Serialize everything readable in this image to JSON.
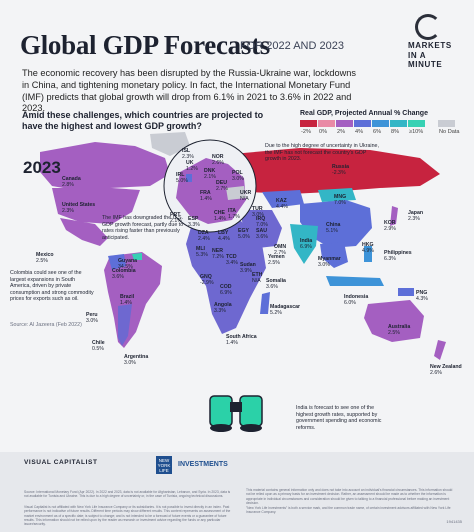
{
  "header": {
    "title": "Global GDP Forecasts",
    "subtitle": "FOR 2022 AND 2023",
    "intro": "The economic recovery has been disrupted by the Russia-Ukraine war, lockdowns in China, and tightening monetary policy. In fact, the International Monetary Fund (IMF) predicts that global growth will drop from 6.1% in 2021 to 3.6% in 2022 and 2023.",
    "question": "Amid these challenges, which countries are projected to have the highest and lowest GDP growth?",
    "logo_line1": "MARKETS",
    "logo_line2": "IN A MINUTE"
  },
  "legend": {
    "title": "Real GDP, Projected Annual % Change",
    "items": [
      {
        "label": "-2%",
        "color": "#c7233f"
      },
      {
        "label": "0%",
        "color": "#e98aa6"
      },
      {
        "label": "2%",
        "color": "#a45fc1"
      },
      {
        "label": "4%",
        "color": "#5d6fd8"
      },
      {
        "label": "6%",
        "color": "#3d93d8"
      },
      {
        "label": "8%",
        "color": "#33b6c6"
      },
      {
        "label": "≥10%",
        "color": "#37d1b4"
      },
      {
        "label": "No Data",
        "color": "#c9ccd3"
      }
    ]
  },
  "year": "2023",
  "countries": [
    {
      "name": "Canada",
      "value": "2.8%"
    },
    {
      "name": "United States",
      "value": "2.3%"
    },
    {
      "name": "Mexico",
      "value": "2.5%"
    },
    {
      "name": "Guyana",
      "value": "34.5%"
    },
    {
      "name": "Brazil",
      "value": "1.4%"
    },
    {
      "name": "Peru",
      "value": "3.0%"
    },
    {
      "name": "Chile",
      "value": "0.5%"
    },
    {
      "name": "Argentina",
      "value": "3.0%"
    },
    {
      "name": "Colombia",
      "value": "3.6%"
    },
    {
      "name": "ISL",
      "value": "2.3%"
    },
    {
      "name": "UK",
      "value": "1.2%"
    },
    {
      "name": "IRL",
      "value": "5.0%"
    },
    {
      "name": "NOR",
      "value": "2.6%"
    },
    {
      "name": "DNK",
      "value": "2.1%"
    },
    {
      "name": "DEU",
      "value": "2.7%"
    },
    {
      "name": "POL",
      "value": "3.0%"
    },
    {
      "name": "FRA",
      "value": "1.4%"
    },
    {
      "name": "UKR",
      "value": "N/A"
    },
    {
      "name": "PRT",
      "value": "2.1%"
    },
    {
      "name": "ESP",
      "value": "3.3%"
    },
    {
      "name": "CHE",
      "value": "1.4%"
    },
    {
      "name": "ITA",
      "value": "1.7%"
    },
    {
      "name": "TUR",
      "value": "3.0%"
    },
    {
      "name": "Russia",
      "value": "-2.3%"
    },
    {
      "name": "KAZ",
      "value": "4.4%"
    },
    {
      "name": "MNG",
      "value": "7.0%"
    },
    {
      "name": "China",
      "value": "5.1%"
    },
    {
      "name": "Japan",
      "value": "2.3%"
    },
    {
      "name": "KOR",
      "value": "2.9%"
    },
    {
      "name": "HKG",
      "value": "4.9%"
    },
    {
      "name": "Philippines",
      "value": "6.3%"
    },
    {
      "name": "India",
      "value": "6.9%"
    },
    {
      "name": "Myanmar",
      "value": "3.0%"
    },
    {
      "name": "Indonesia",
      "value": "6.0%"
    },
    {
      "name": "PNG",
      "value": "4.3%"
    },
    {
      "name": "Australia",
      "value": "2.5%"
    },
    {
      "name": "New Zealand",
      "value": "2.6%"
    },
    {
      "name": "DZA",
      "value": "2.4%"
    },
    {
      "name": "LBY",
      "value": "4.4%"
    },
    {
      "name": "EGY",
      "value": "5.0%"
    },
    {
      "name": "SAU",
      "value": "3.6%"
    },
    {
      "name": "IRQ",
      "value": "7.0%"
    },
    {
      "name": "OMN",
      "value": "2.7%"
    },
    {
      "name": "Yemen",
      "value": "2.5%"
    },
    {
      "name": "MLI",
      "value": "5.3%"
    },
    {
      "name": "NER",
      "value": "7.2%"
    },
    {
      "name": "TCD",
      "value": "3.4%"
    },
    {
      "name": "Sudan",
      "value": "3.9%"
    },
    {
      "name": "ETH",
      "value": "N/A"
    },
    {
      "name": "Somalia",
      "value": "3.6%"
    },
    {
      "name": "GNQ",
      "value": "-2.9%"
    },
    {
      "name": "COD",
      "value": "6.9%"
    },
    {
      "name": "Angola",
      "value": "3.3%"
    },
    {
      "name": "Madagascar",
      "value": "5.2%"
    },
    {
      "name": "South Africa",
      "value": "1.4%"
    }
  ],
  "notes": {
    "ukraine": "Due to the high degree of uncertainty in Ukraine, the IMF has not forecast the country's GDP growth in 2023.",
    "us": "The IMF has downgraded the U.S. GDP growth forecast, partly due to rates rising faster than previously anticipated.",
    "colombia": "Colombia could see one of the largest expansions in South America, driven by private consumption and strong commodity prices for exports such as oil.",
    "colombia_source": "Source: Al Jazeera (Feb 2022)",
    "india": "India is forecast to see one of the highest growth rates, supported by government spending and economic reforms."
  },
  "footer": {
    "brand": "VISUAL CAPITALIST",
    "partner_badge": "NEW YORK LIFE",
    "partner": "INVESTMENTS",
    "source": "Source: International Monetary Fund (Apr 2022). In 2022 and 2023, data is not available for Afghanistan, Lebanon, and Syria. In 2023, data is not available for Tunisia and Ukraine. This is due to a high degree of uncertainty or, in the case of Tunisia, ongoing technical discussions.",
    "disclaimer1": "Visual Capitalist is not affiliated with New York Life Insurance Company or its subsidiaries. It is not possible to invest directly in an index. Past performance is not indicative of future results. Different time periods may show different results. This content represents an assessment of the market environment as of a specific date; is subject to change; and is not intended to be a forecast of future events or a guarantee of future results. This information should not be relied upon by the reader as research or investment advice regarding the funds or any particular issuer/security.",
    "disclaimer2": "This material contains general information only and does not take into account an individual's financial circumstances. This information should not be relied upon as a primary basis for an investment decision. Rather, an assessment should be made as to whether the information is appropriate in individual circumstances and consideration should be given to talking to a financial professional before making an investment decision.",
    "disclaimer3": "\"New York Life Investments\" is both a service mark, and the common trade name, of certain investment advisors affiliated with New York Life Insurance Company.",
    "code": "1941435"
  }
}
